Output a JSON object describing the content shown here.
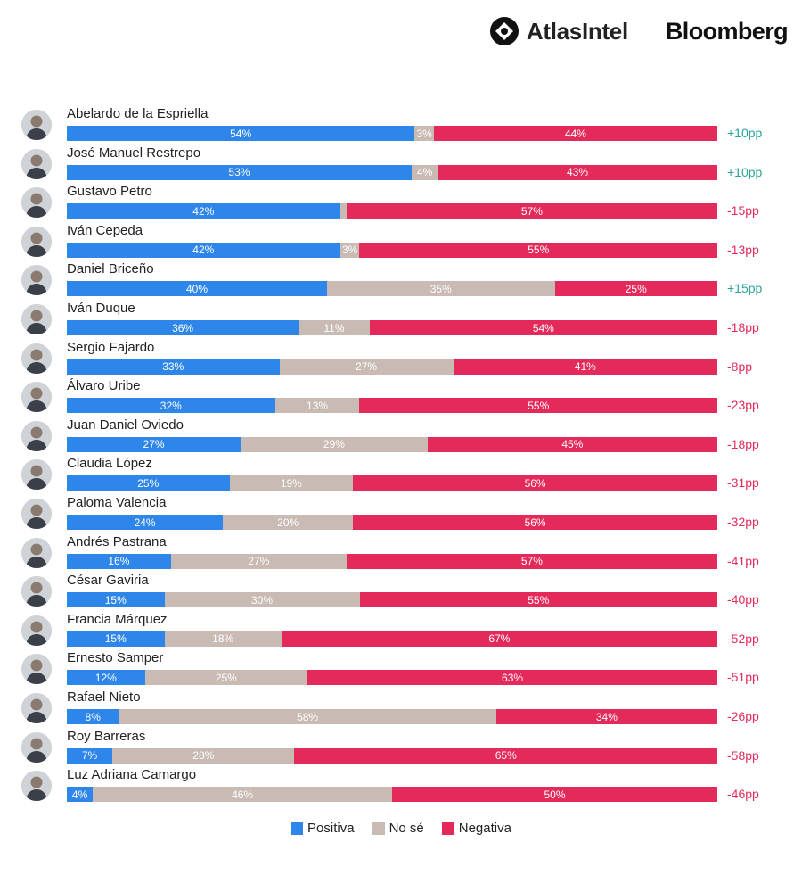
{
  "brand": {
    "atlas_label": "AtlasIntel",
    "bloomberg_label": "Bloomberg"
  },
  "colors": {
    "positive": "#2f86ea",
    "unsure": "#c9bab4",
    "negative": "#e42a5a",
    "net_positive": "#2aa39a",
    "net_negative": "#e42a5a"
  },
  "legend": {
    "positive": "Positiva",
    "unsure": "No sé",
    "negative": "Negativa"
  },
  "chart_data": {
    "type": "bar",
    "orientation": "horizontal",
    "stacked": true,
    "series": [
      {
        "name": "Positiva",
        "key": "positive"
      },
      {
        "name": "No sé",
        "key": "unsure"
      },
      {
        "name": "Negativa",
        "key": "negative"
      }
    ],
    "rows": [
      {
        "name": "Abelardo de la Espriella",
        "positive": 54,
        "unsure": 3,
        "negative": 44,
        "net": "+10pp",
        "positive_label": "54%",
        "unsure_label": "3%",
        "negative_label": "44%"
      },
      {
        "name": "José Manuel Restrepo",
        "positive": 53,
        "unsure": 4,
        "negative": 43,
        "net": "+10pp",
        "positive_label": "53%",
        "unsure_label": "4%",
        "negative_label": "43%"
      },
      {
        "name": "Gustavo Petro",
        "positive": 42,
        "unsure": 1,
        "negative": 57,
        "net": "-15pp",
        "positive_label": "42%",
        "unsure_label": "",
        "negative_label": "57%"
      },
      {
        "name": "Iván Cepeda",
        "positive": 42,
        "unsure": 3,
        "negative": 55,
        "net": "-13pp",
        "positive_label": "42%",
        "unsure_label": "3%",
        "negative_label": "55%"
      },
      {
        "name": "Daniel Briceño",
        "positive": 40,
        "unsure": 35,
        "negative": 25,
        "net": "+15pp",
        "positive_label": "40%",
        "unsure_label": "35%",
        "negative_label": "25%"
      },
      {
        "name": "Iván Duque",
        "positive": 36,
        "unsure": 11,
        "negative": 54,
        "net": "-18pp",
        "positive_label": "36%",
        "unsure_label": "11%",
        "negative_label": "54%"
      },
      {
        "name": "Sergio Fajardo",
        "positive": 33,
        "unsure": 27,
        "negative": 41,
        "net": "-8pp",
        "positive_label": "33%",
        "unsure_label": "27%",
        "negative_label": "41%"
      },
      {
        "name": "Álvaro Uribe",
        "positive": 32,
        "unsure": 13,
        "negative": 55,
        "net": "-23pp",
        "positive_label": "32%",
        "unsure_label": "13%",
        "negative_label": "55%"
      },
      {
        "name": "Juan Daniel Oviedo",
        "positive": 27,
        "unsure": 29,
        "negative": 45,
        "net": "-18pp",
        "positive_label": "27%",
        "unsure_label": "29%",
        "negative_label": "45%"
      },
      {
        "name": "Claudia López",
        "positive": 25,
        "unsure": 19,
        "negative": 56,
        "net": "-31pp",
        "positive_label": "25%",
        "unsure_label": "19%",
        "negative_label": "56%"
      },
      {
        "name": "Paloma Valencia",
        "positive": 24,
        "unsure": 20,
        "negative": 56,
        "net": "-32pp",
        "positive_label": "24%",
        "unsure_label": "20%",
        "negative_label": "56%"
      },
      {
        "name": "Andrés Pastrana",
        "positive": 16,
        "unsure": 27,
        "negative": 57,
        "net": "-41pp",
        "positive_label": "16%",
        "unsure_label": "27%",
        "negative_label": "57%"
      },
      {
        "name": "César Gaviria",
        "positive": 15,
        "unsure": 30,
        "negative": 55,
        "net": "-40pp",
        "positive_label": "15%",
        "unsure_label": "30%",
        "negative_label": "55%"
      },
      {
        "name": "Francia Márquez",
        "positive": 15,
        "unsure": 18,
        "negative": 67,
        "net": "-52pp",
        "positive_label": "15%",
        "unsure_label": "18%",
        "negative_label": "67%"
      },
      {
        "name": "Ernesto Samper",
        "positive": 12,
        "unsure": 25,
        "negative": 63,
        "net": "-51pp",
        "positive_label": "12%",
        "unsure_label": "25%",
        "negative_label": "63%"
      },
      {
        "name": "Rafael Nieto",
        "positive": 8,
        "unsure": 58,
        "negative": 34,
        "net": "-26pp",
        "positive_label": "8%",
        "unsure_label": "58%",
        "negative_label": "34%"
      },
      {
        "name": "Roy Barreras",
        "positive": 7,
        "unsure": 28,
        "negative": 65,
        "net": "-58pp",
        "positive_label": "7%",
        "unsure_label": "28%",
        "negative_label": "65%"
      },
      {
        "name": "Luz Adriana Camargo",
        "positive": 4,
        "unsure": 46,
        "negative": 50,
        "net": "-46pp",
        "positive_label": "4%",
        "unsure_label": "46%",
        "negative_label": "50%"
      }
    ]
  }
}
